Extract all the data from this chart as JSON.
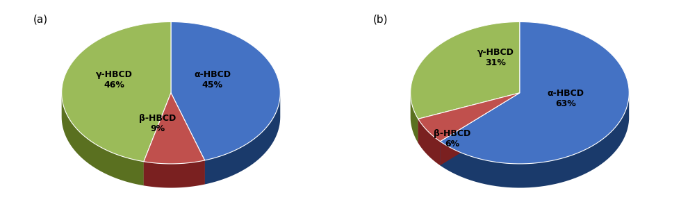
{
  "chart_a": {
    "label": "(a)",
    "values": [
      45,
      9,
      46
    ],
    "labels": [
      "α-HBCD",
      "β-HBCD",
      "γ-HBCD"
    ],
    "pcts": [
      "45%",
      "9%",
      "46%"
    ],
    "colors": [
      "#4472C4",
      "#C0504D",
      "#9BBB59"
    ],
    "shadow_colors": [
      "#1a3a6b",
      "#7a2020",
      "#5a7020"
    ],
    "startangle": 90
  },
  "chart_b": {
    "label": "(b)",
    "values": [
      63,
      6,
      31
    ],
    "labels": [
      "α-HBCD",
      "β-HBCD",
      "γ-HBCD"
    ],
    "pcts": [
      "63%",
      "6%",
      "31%"
    ],
    "colors": [
      "#4472C4",
      "#C0504D",
      "#9BBB59"
    ],
    "shadow_colors": [
      "#1a3a6b",
      "#7a2020",
      "#5a7020"
    ],
    "startangle": 90
  },
  "bg_color": "#FFFFFF",
  "fig_width": 10.04,
  "fig_height": 2.91
}
